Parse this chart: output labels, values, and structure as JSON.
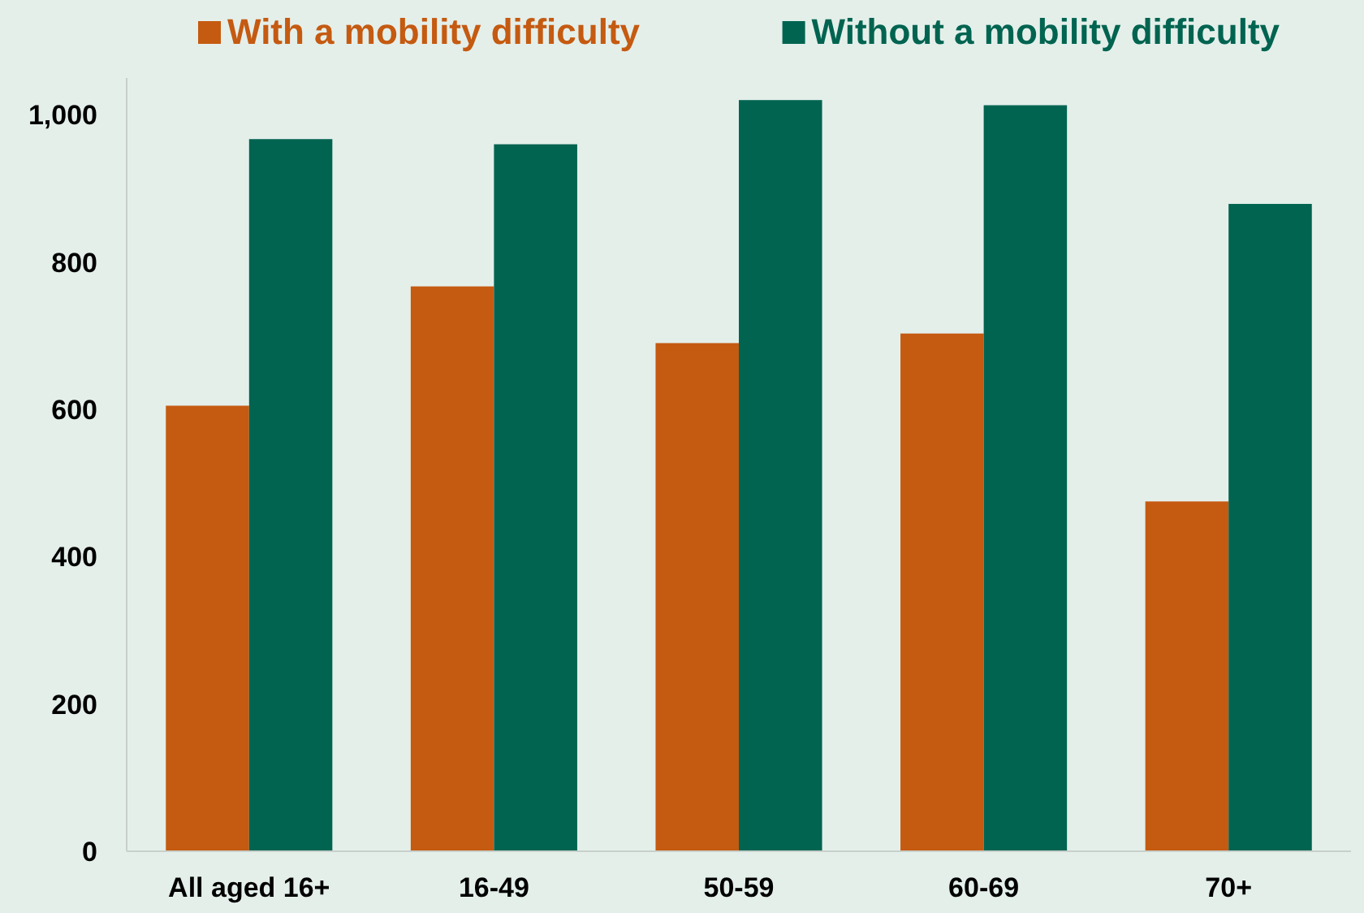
{
  "chart_data": {
    "type": "bar",
    "categories": [
      "All aged 16+",
      "16-49",
      "50-59",
      "60-69",
      "70+"
    ],
    "series": [
      {
        "name": "With a mobility difficulty",
        "color": "#c55a11",
        "values": [
          605,
          767,
          690,
          703,
          475
        ]
      },
      {
        "name": "Without a mobility difficulty",
        "color": "#006450",
        "values": [
          967,
          960,
          1020,
          1013,
          879
        ]
      }
    ],
    "ylim": [
      0,
      1050
    ],
    "yticks": [
      0,
      200,
      400,
      600,
      800,
      {
        "value": 1000,
        "label": "1,000"
      }
    ],
    "grid": false,
    "legend": "top"
  }
}
